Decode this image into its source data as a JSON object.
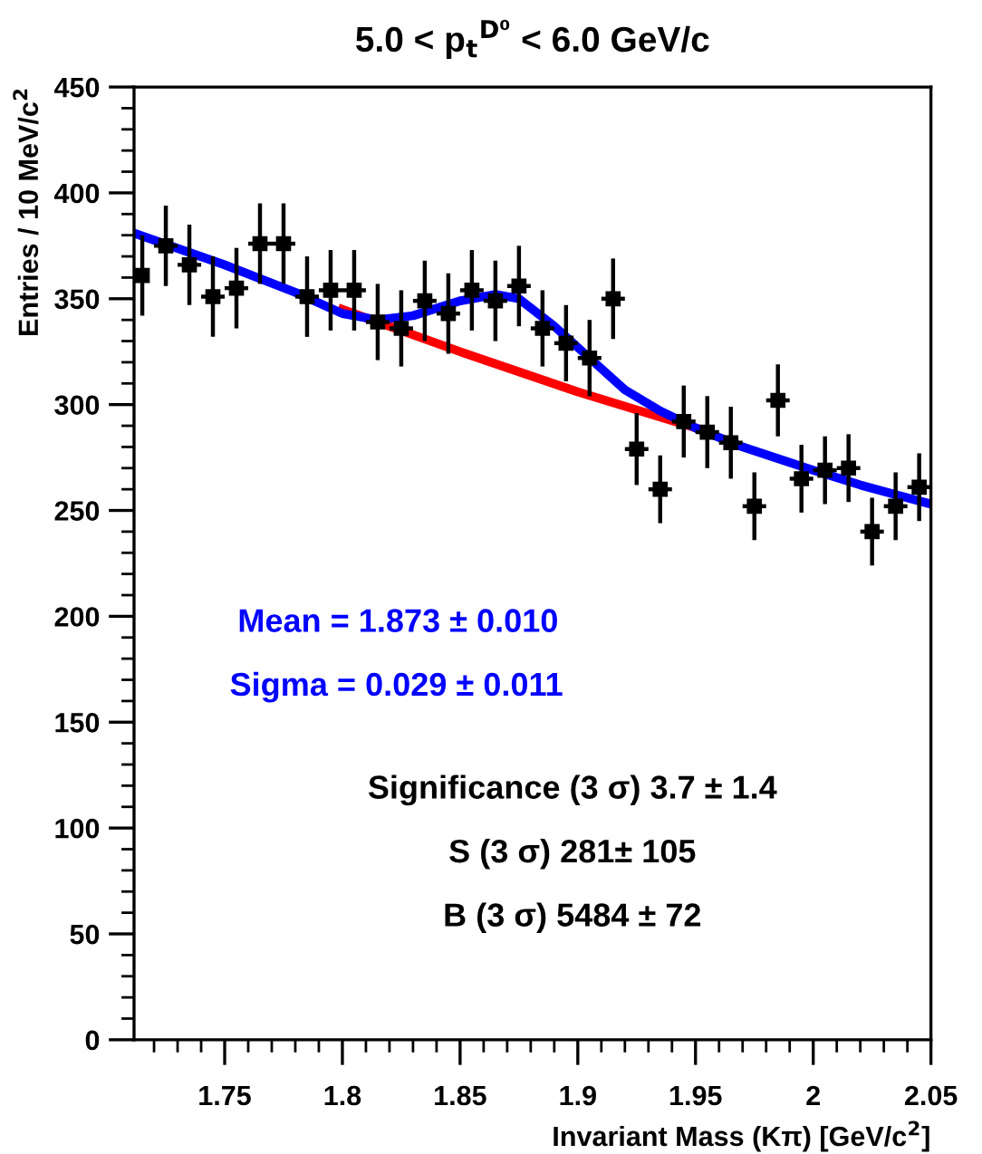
{
  "chart_data": {
    "type": "scatter",
    "title": "5.0 < p$_{t}$$^{D⁰}$ < 6.0 GeV/c",
    "xlabel": "Invariant Mass (Kπ) [GeV/c$^{2}$]",
    "ylabel": "Entries / 10 MeV/c$^{2}$",
    "xlim": [
      1.7115,
      2.05
    ],
    "xticks": [
      1.75,
      1.8,
      1.85,
      1.9,
      1.95,
      2,
      2.05
    ],
    "ylim": [
      0,
      450
    ],
    "yticks": [
      0,
      50,
      100,
      150,
      200,
      250,
      300,
      350,
      400,
      450
    ],
    "grid": false,
    "series": [
      {
        "type": "scatter",
        "color": "#000000",
        "marker": "square",
        "x": [
          1.715,
          1.725,
          1.735,
          1.745,
          1.755,
          1.765,
          1.775,
          1.785,
          1.795,
          1.805,
          1.815,
          1.825,
          1.835,
          1.845,
          1.855,
          1.865,
          1.875,
          1.885,
          1.895,
          1.905,
          1.915,
          1.925,
          1.935,
          1.945,
          1.955,
          1.965,
          1.975,
          1.985,
          1.995,
          2.005,
          2.015,
          2.025,
          2.035,
          2.045
        ],
        "values": [
          361,
          375,
          366,
          351,
          355,
          376,
          376,
          351,
          354,
          354,
          339,
          336,
          349,
          343,
          354,
          349,
          356,
          336,
          329,
          322,
          350,
          279,
          260,
          292,
          287,
          282,
          252,
          302,
          265,
          269,
          270,
          240,
          252,
          261
        ],
        "errors": [
          19,
          19,
          19,
          19,
          19,
          19,
          19,
          19,
          19,
          19,
          18,
          18,
          19,
          19,
          19,
          19,
          19,
          18,
          18,
          18,
          19,
          17,
          16,
          17,
          17,
          17,
          16,
          17,
          16,
          16,
          16,
          16,
          16,
          16
        ],
        "xerrors": [
          null,
          0.005,
          0.005,
          0.005,
          0.005,
          0.005,
          0.005,
          0.005,
          0.005,
          0.005,
          0.005,
          0.005,
          0.005,
          0.005,
          0.005,
          0.005,
          0.005,
          0.005,
          0.005,
          0.005,
          0.005,
          0.005,
          0.005,
          0.005,
          0.005,
          0.005,
          0.005,
          0.005,
          0.005,
          0.005,
          0.005,
          0.005,
          0.005,
          0.005
        ]
      },
      {
        "type": "line",
        "color": "#ff0000",
        "x": [
          1.8,
          1.85,
          1.9,
          1.95
        ],
        "values": [
          345,
          325,
          306,
          289
        ]
      },
      {
        "type": "line",
        "color": "#0000ff",
        "x": [
          1.7115,
          1.75,
          1.78,
          1.8,
          1.815,
          1.83,
          1.85,
          1.865,
          1.875,
          1.89,
          1.905,
          1.92,
          1.935,
          1.95,
          1.97,
          2.0,
          2.02,
          2.05
        ],
        "values": [
          381,
          366,
          353,
          343,
          340,
          342,
          349,
          352,
          350,
          337,
          322,
          307,
          297,
          289,
          280,
          269,
          262,
          253
        ]
      }
    ],
    "annotations": [
      "Mean = 1.873 ± 0.010",
      "Sigma = 0.029 ± 0.011",
      "Significance (3 σ) 3.7 ± 1.4",
      "S (3 σ) 281± 105",
      "B (3 σ) 5484 ± 72"
    ]
  }
}
